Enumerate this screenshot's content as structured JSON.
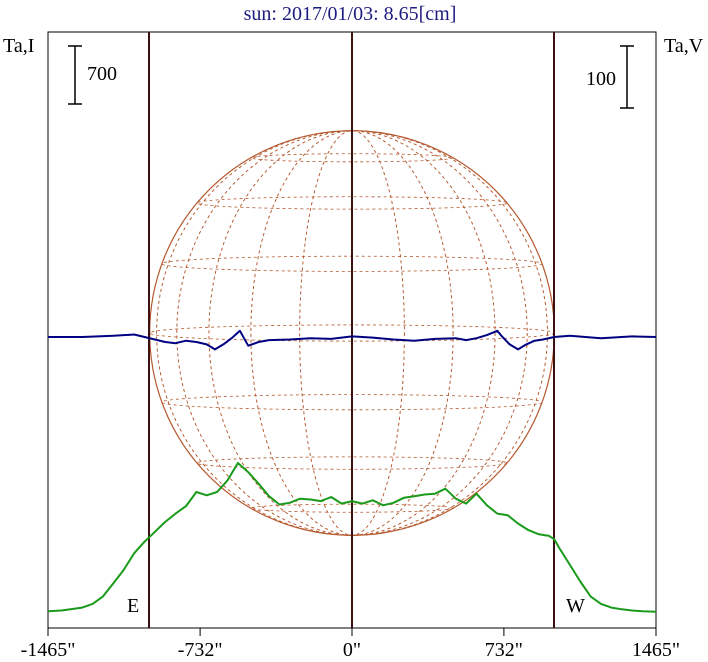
{
  "chart_data": {
    "type": "line",
    "title": "sun: 2017/01/03: 8.65[cm]",
    "left_axis_label": "Ta,I",
    "right_axis_label": "Ta,V",
    "left_scale_label": "700",
    "right_scale_label": "100",
    "east_label": "E",
    "west_label": "W",
    "x_range": [
      -1465,
      1465
    ],
    "x_ticks": [
      {
        "value": -1465,
        "label": "-1465\""
      },
      {
        "value": -732,
        "label": "-732\""
      },
      {
        "value": 0,
        "label": "0\""
      },
      {
        "value": 732,
        "label": "732\""
      },
      {
        "value": 1465,
        "label": "1465\""
      }
    ],
    "limb_positions": [
      -975,
      975
    ],
    "series": [
      {
        "color": "#1a9a1a",
        "axis": "left",
        "relative_scale": 700,
        "x": [
          -1465,
          -1400,
          -1300,
          -1250,
          -1200,
          -1150,
          -1100,
          -1050,
          -1000,
          -975,
          -950,
          -900,
          -850,
          -800,
          -750,
          -700,
          -650,
          -600,
          -550,
          -500,
          -450,
          -400,
          -350,
          -300,
          -250,
          -200,
          -150,
          -100,
          -50,
          0,
          50,
          100,
          150,
          200,
          250,
          300,
          350,
          400,
          450,
          500,
          550,
          600,
          650,
          700,
          750,
          800,
          850,
          900,
          950,
          975,
          1000,
          1050,
          1100,
          1150,
          1200,
          1250,
          1300,
          1350,
          1400,
          1465
        ],
        "y": [
          20,
          30,
          65,
          110,
          200,
          360,
          520,
          720,
          860,
          920,
          980,
          1100,
          1200,
          1290,
          1460,
          1420,
          1460,
          1600,
          1810,
          1700,
          1560,
          1410,
          1310,
          1330,
          1380,
          1370,
          1350,
          1400,
          1320,
          1350,
          1320,
          1360,
          1300,
          1330,
          1390,
          1410,
          1430,
          1440,
          1500,
          1380,
          1320,
          1440,
          1300,
          1200,
          1180,
          1080,
          1000,
          950,
          930,
          890,
          780,
          580,
          380,
          200,
          110,
          65,
          45,
          30,
          20,
          15
        ]
      },
      {
        "color": "#000080",
        "axis": "right",
        "relative_scale": 100,
        "x": [
          -1465,
          -1300,
          -1150,
          -1050,
          -1000,
          -950,
          -900,
          -850,
          -800,
          -750,
          -700,
          -660,
          -620,
          -580,
          -540,
          -500,
          -450,
          -400,
          -300,
          -200,
          -100,
          0,
          100,
          200,
          300,
          400,
          500,
          550,
          600,
          650,
          700,
          720,
          760,
          800,
          840,
          880,
          920,
          975,
          1050,
          1200,
          1350,
          1465
        ],
        "y": [
          0,
          0,
          2,
          4,
          0,
          -4,
          -8,
          -10,
          -6,
          -8,
          -12,
          -20,
          -12,
          -2,
          10,
          -14,
          -8,
          -5,
          -4,
          -2,
          -3,
          1,
          -1,
          -4,
          -6,
          -3,
          -2,
          -5,
          -2,
          3,
          10,
          2,
          -12,
          -20,
          -12,
          -6,
          -4,
          0,
          2,
          -2,
          1,
          0
        ]
      }
    ]
  }
}
